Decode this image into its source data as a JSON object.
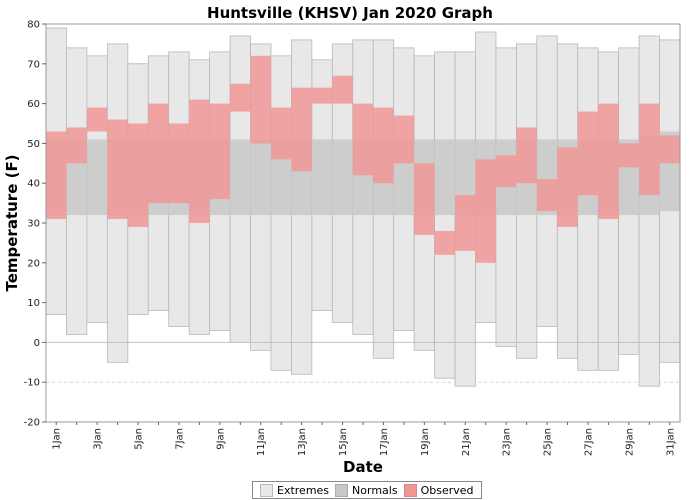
{
  "chart_data": {
    "type": "bar",
    "title": "Huntsville (KHSV) Jan 2020 Graph",
    "xlabel": "Date",
    "ylabel": "Temperature (F)",
    "ylim": [
      -20,
      80
    ],
    "yticks": [
      -20,
      -10,
      0,
      10,
      20,
      30,
      40,
      50,
      60,
      70,
      80
    ],
    "grid": true,
    "legend_position": "bottom",
    "categories": [
      "1Jan",
      "2Jan",
      "3Jan",
      "4Jan",
      "5Jan",
      "6Jan",
      "7Jan",
      "8Jan",
      "9Jan",
      "10Jan",
      "11Jan",
      "12Jan",
      "13Jan",
      "14Jan",
      "15Jan",
      "16Jan",
      "17Jan",
      "18Jan",
      "19Jan",
      "20Jan",
      "21Jan",
      "22Jan",
      "23Jan",
      "24Jan",
      "25Jan",
      "26Jan",
      "27Jan",
      "28Jan",
      "29Jan",
      "30Jan",
      "31Jan"
    ],
    "tick_labels": [
      "1Jan",
      "3Jan",
      "5Jan",
      "7Jan",
      "9Jan",
      "11Jan",
      "13Jan",
      "15Jan",
      "17Jan",
      "19Jan",
      "21Jan",
      "23Jan",
      "25Jan",
      "27Jan",
      "29Jan",
      "31Jan"
    ],
    "series": [
      {
        "name": "Extremes",
        "color": "#e8e8e8",
        "low": [
          7,
          2,
          5,
          -5,
          7,
          8,
          4,
          2,
          3,
          0,
          -2,
          -7,
          -8,
          8,
          5,
          2,
          -4,
          3,
          -2,
          -9,
          -11,
          5,
          -1,
          -4,
          4,
          -4,
          -7,
          -7,
          -3,
          -11,
          -5
        ],
        "high": [
          79,
          74,
          72,
          75,
          70,
          72,
          73,
          71,
          73,
          77,
          75,
          72,
          76,
          71,
          75,
          76,
          76,
          74,
          72,
          73,
          73,
          78,
          74,
          75,
          77,
          75,
          74,
          73,
          74,
          77,
          76
        ]
      },
      {
        "name": "Normals",
        "color": "#c8c8c8",
        "low": [
          32,
          32,
          32,
          32,
          32,
          32,
          32,
          32,
          32,
          32,
          32,
          32,
          32,
          32,
          32,
          32,
          32,
          32,
          32,
          32,
          32,
          32,
          32,
          32,
          32,
          32,
          32,
          32,
          32,
          32,
          33
        ],
        "high": [
          51,
          51,
          51,
          51,
          51,
          51,
          51,
          51,
          51,
          51,
          51,
          51,
          51,
          51,
          51,
          51,
          51,
          51,
          51,
          51,
          51,
          51,
          51,
          51,
          51,
          51,
          51,
          51,
          51,
          52,
          53
        ]
      },
      {
        "name": "Observed",
        "color": "#f09696",
        "low": [
          31,
          45,
          53,
          31,
          29,
          35,
          35,
          30,
          36,
          58,
          50,
          46,
          43,
          60,
          60,
          42,
          40,
          45,
          27,
          22,
          23,
          20,
          39,
          40,
          33,
          29,
          37,
          31,
          44,
          37,
          45
        ],
        "high": [
          53,
          54,
          59,
          56,
          55,
          60,
          55,
          61,
          60,
          65,
          72,
          59,
          64,
          64,
          67,
          60,
          59,
          57,
          45,
          28,
          37,
          46,
          47,
          54,
          41,
          49,
          58,
          60,
          50,
          60,
          52
        ]
      }
    ]
  }
}
